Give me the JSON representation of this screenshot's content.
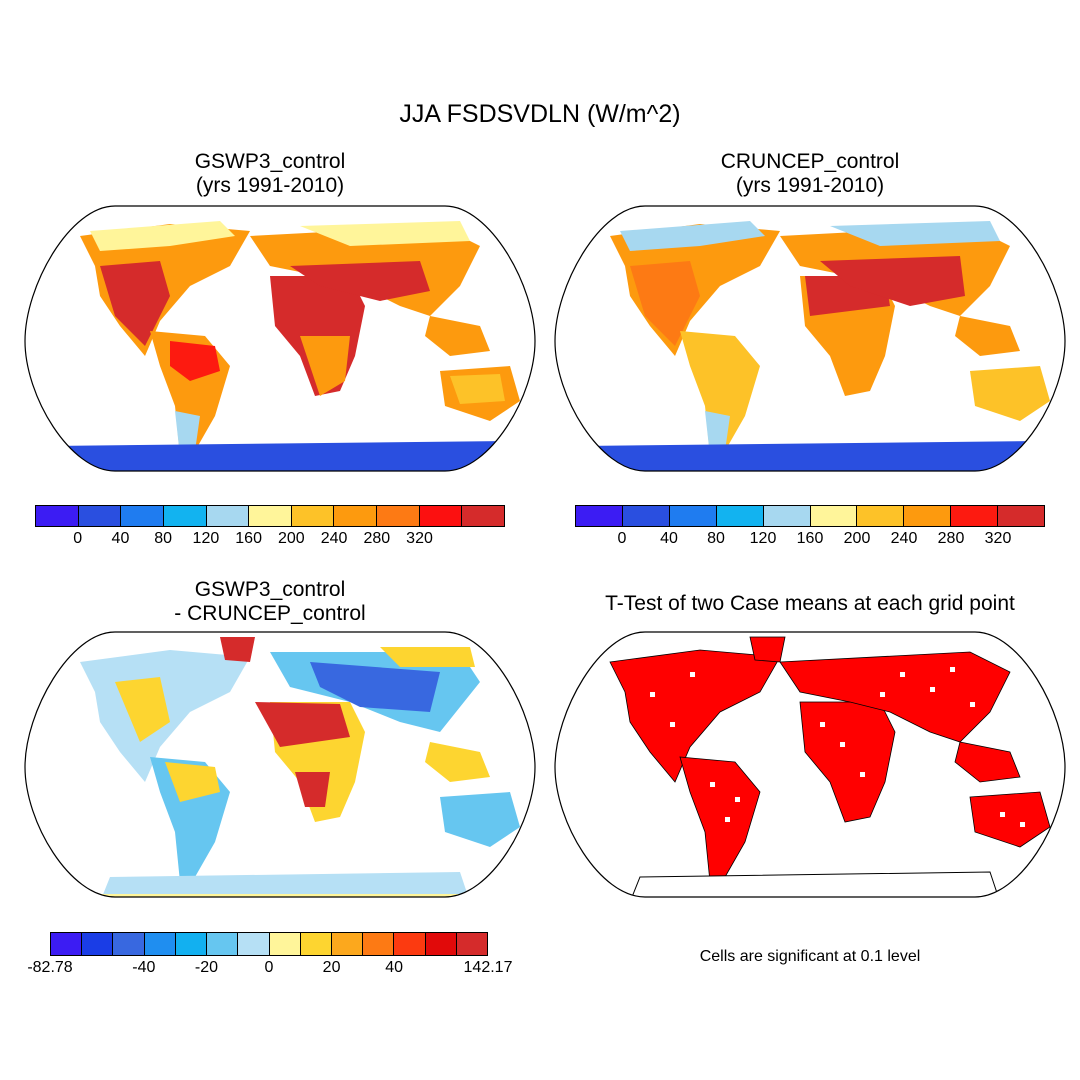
{
  "figure": {
    "title": "JJA FSDSVDLN (W/m^2)"
  },
  "panels": {
    "top_left": {
      "title_line1": "GSWP3_control",
      "title_line2": "(yrs 1991-2010)"
    },
    "top_right": {
      "title_line1": "CRUNCEP_control",
      "title_line2": "(yrs 1991-2010)"
    },
    "bottom_left": {
      "title_line1": "GSWP3_control",
      "title_line2": "- CRUNCEP_control"
    },
    "bottom_right": {
      "title": "T-Test of two Case means at each grid point",
      "note": "Cells are significant at 0.1 level"
    }
  },
  "colorbars": {
    "absolute": {
      "colors": [
        "#3c1cf3",
        "#2a4fe0",
        "#1f7cf0",
        "#12b3f0",
        "#a7d8f0",
        "#fff59a",
        "#fdc228",
        "#fd9a0e",
        "#fd7a14",
        "#fc1010",
        "#d52b2b"
      ],
      "labels": [
        "0",
        "40",
        "80",
        "120",
        "160",
        "200",
        "240",
        "280",
        "320"
      ]
    },
    "absolute_right": {
      "colors": [
        "#3c1cf3",
        "#2a4fe0",
        "#1f7cf0",
        "#12b3f0",
        "#a7d8f0",
        "#fff59a",
        "#fdc228",
        "#fd9a0e",
        "#fd1a10",
        "#d52b2b"
      ],
      "labels": [
        "0",
        "40",
        "80",
        "120",
        "160",
        "200",
        "240",
        "280",
        "320"
      ]
    },
    "difference": {
      "colors": [
        "#3c1cf3",
        "#1a3de6",
        "#3868e0",
        "#1f8ef0",
        "#12b0f0",
        "#66c6f0",
        "#b6e0f5",
        "#fff59a",
        "#fdd530",
        "#fca81d",
        "#fd7a14",
        "#fc3a10",
        "#e10a0a",
        "#d52b2b"
      ],
      "labels": [
        "-82.78",
        "-40",
        "-20",
        "0",
        "20",
        "40",
        "142.17"
      ]
    }
  },
  "significance": {
    "color": "#ff0000"
  }
}
